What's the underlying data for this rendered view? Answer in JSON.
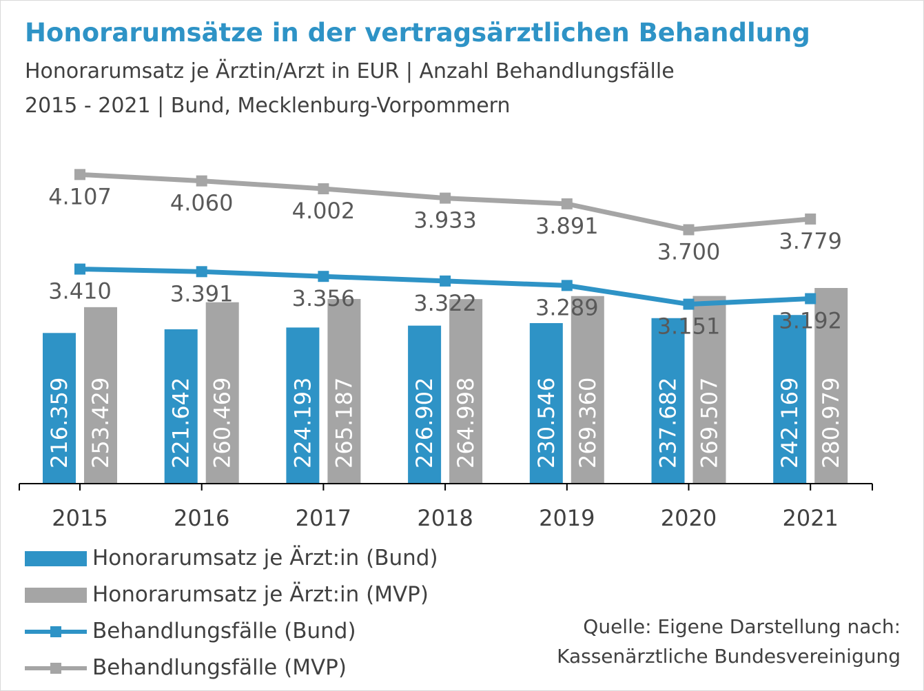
{
  "header": {
    "title": "Honorarumsätze in der vertragsärztlichen Behandlung",
    "subtitle_line1": "Honorarumsatz je Ärztin/Arzt in EUR | Anzahl Behandlungsfälle",
    "subtitle_line2": "2015 - 2021 | Bund, Mecklenburg-Vorpommern"
  },
  "legend": [
    {
      "label": "Honorarumsatz je Ärzt:in (Bund)",
      "kind": "bar",
      "color": "#2e93c6"
    },
    {
      "label": "Honorarumsatz je Ärzt:in (MVP)",
      "kind": "bar",
      "color": "#a5a5a5"
    },
    {
      "label": "Behandlungsfälle (Bund)",
      "kind": "line",
      "color": "#2e93c6"
    },
    {
      "label": "Behandlungsfälle (MVP)",
      "kind": "line",
      "color": "#a5a5a5"
    }
  ],
  "source": {
    "line1": "Quelle: Eigene Darstellung nach:",
    "line2": "Kassenärztliche Bundesvereinigung"
  },
  "chart_data": {
    "type": "bar",
    "categories": [
      "2015",
      "2016",
      "2017",
      "2018",
      "2019",
      "2020",
      "2021"
    ],
    "bar_series": [
      {
        "name": "Honorarumsatz je Ärzt:in (Bund)",
        "color": "#2e93c6",
        "values": [
          216359,
          221642,
          224193,
          226902,
          230546,
          237682,
          242169
        ],
        "labels": [
          "216.359",
          "221.642",
          "224.193",
          "226.902",
          "230.546",
          "237.682",
          "242.169"
        ]
      },
      {
        "name": "Honorarumsatz je Ärzt:in (MVP)",
        "color": "#a5a5a5",
        "values": [
          253429,
          260469,
          265187,
          264998,
          269360,
          269507,
          280979
        ],
        "labels": [
          "253.429",
          "260.469",
          "265.187",
          "264.998",
          "269.360",
          "269.507",
          "280.979"
        ]
      }
    ],
    "line_series": [
      {
        "name": "Behandlungsfälle (Bund)",
        "color": "#2e93c6",
        "values": [
          3410,
          3391,
          3356,
          3322,
          3289,
          3151,
          3192
        ],
        "labels": [
          "3.410",
          "3.391",
          "3.356",
          "3.322",
          "3.289",
          "3.151",
          "3.192"
        ]
      },
      {
        "name": "Behandlungsfälle (MVP)",
        "color": "#a5a5a5",
        "values": [
          4107,
          4060,
          4002,
          3933,
          3891,
          3700,
          3779
        ],
        "labels": [
          "4.107",
          "4.060",
          "4.002",
          "3.933",
          "3.891",
          "3.700",
          "3.779"
        ]
      }
    ],
    "bar_axis_ylim": [
      0,
      300000
    ],
    "line_axis_ylim": [
      1000,
      4500
    ],
    "grid": false,
    "legend_position": "bottom-left"
  }
}
